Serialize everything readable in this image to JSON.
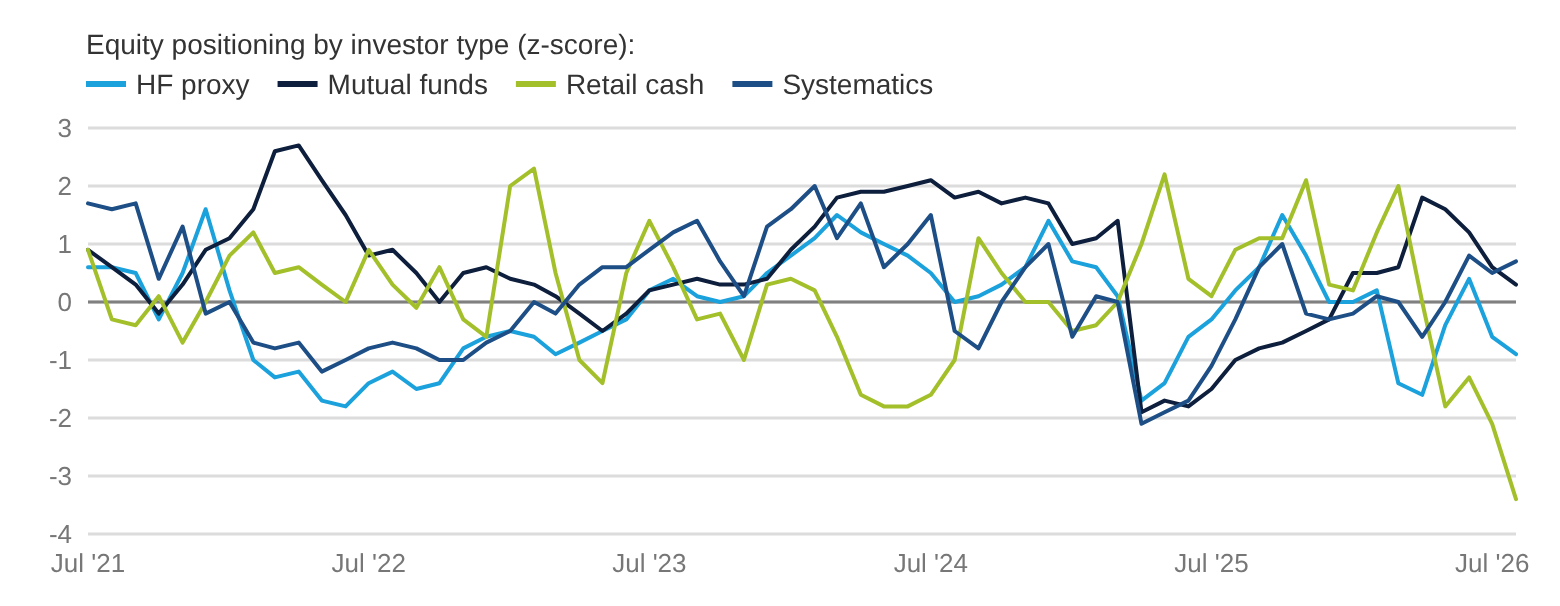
{
  "chart_data": {
    "type": "line",
    "title": "Equity positioning by investor type (z-score):",
    "x": [
      "2021-07",
      "2021-08",
      "2021-09",
      "2021-10",
      "2021-11",
      "2021-12",
      "2022-01",
      "2022-02",
      "2022-03",
      "2022-04",
      "2022-05",
      "2022-06",
      "2022-07",
      "2022-08",
      "2022-09",
      "2022-10",
      "2022-11",
      "2022-12",
      "2023-01",
      "2023-02",
      "2023-03",
      "2023-04",
      "2023-05",
      "2023-06",
      "2023-07",
      "2023-08",
      "2023-09",
      "2023-10",
      "2023-11",
      "2023-12",
      "2024-01",
      "2024-02",
      "2024-03",
      "2024-04",
      "2024-05",
      "2024-06",
      "2024-07",
      "2024-08",
      "2024-09",
      "2024-10",
      "2024-11",
      "2024-12",
      "2025-01",
      "2025-02",
      "2025-03",
      "2025-04",
      "2025-05",
      "2025-06",
      "2025-07",
      "2025-08",
      "2025-09",
      "2025-10",
      "2025-11",
      "2025-12",
      "2026-01",
      "2026-02",
      "2026-03",
      "2026-04",
      "2026-05",
      "2026-06",
      "2026-07",
      "2026-08"
    ],
    "series": [
      {
        "name": "HF proxy",
        "color": "#1ba1dc",
        "values": [
          0.6,
          0.6,
          0.5,
          -0.3,
          0.5,
          1.6,
          0.2,
          -1.0,
          -1.3,
          -1.2,
          -1.7,
          -1.8,
          -1.4,
          -1.2,
          -1.5,
          -1.4,
          -0.8,
          -0.6,
          -0.5,
          -0.6,
          -0.9,
          -0.7,
          -0.5,
          -0.3,
          0.2,
          0.4,
          0.1,
          0.0,
          0.1,
          0.5,
          0.8,
          1.1,
          1.5,
          1.2,
          1.0,
          0.8,
          0.5,
          0.0,
          0.1,
          0.3,
          0.6,
          1.4,
          0.7,
          0.6,
          0.1,
          -1.7,
          -1.4,
          -0.6,
          -0.3,
          0.2,
          0.6,
          1.5,
          0.8,
          0.0,
          0.0,
          0.2,
          -1.4,
          -1.6,
          -0.4,
          0.4,
          -0.6,
          -0.9
        ]
      },
      {
        "name": "Mutual funds",
        "color": "#0d1f3c",
        "values": [
          0.9,
          0.6,
          0.3,
          -0.2,
          0.3,
          0.9,
          1.1,
          1.6,
          2.6,
          2.7,
          2.1,
          1.5,
          0.8,
          0.9,
          0.5,
          0.0,
          0.5,
          0.6,
          0.4,
          0.3,
          0.1,
          -0.2,
          -0.5,
          -0.2,
          0.2,
          0.3,
          0.4,
          0.3,
          0.3,
          0.4,
          0.9,
          1.3,
          1.8,
          1.9,
          1.9,
          2.0,
          2.1,
          1.8,
          1.9,
          1.7,
          1.8,
          1.7,
          1.0,
          1.1,
          1.4,
          -1.9,
          -1.7,
          -1.8,
          -1.5,
          -1.0,
          -0.8,
          -0.7,
          -0.5,
          -0.3,
          0.5,
          0.5,
          0.6,
          1.8,
          1.6,
          1.2,
          0.6,
          0.3
        ]
      },
      {
        "name": "Retail cash",
        "color": "#a3c02b",
        "values": [
          0.9,
          -0.3,
          -0.4,
          0.1,
          -0.7,
          0.0,
          0.8,
          1.2,
          0.5,
          0.6,
          0.3,
          0.0,
          0.9,
          0.3,
          -0.1,
          0.6,
          -0.3,
          -0.6,
          2.0,
          2.3,
          0.5,
          -1.0,
          -1.4,
          0.5,
          1.4,
          0.6,
          -0.3,
          -0.2,
          -1.0,
          0.3,
          0.4,
          0.2,
          -0.6,
          -1.6,
          -1.8,
          -1.8,
          -1.6,
          -1.0,
          1.1,
          0.5,
          0.0,
          0.0,
          -0.5,
          -0.4,
          0.0,
          1.0,
          2.2,
          0.4,
          0.1,
          0.9,
          1.1,
          1.1,
          2.1,
          0.3,
          0.2,
          1.2,
          2.0,
          0.0,
          -1.8,
          -1.3,
          -2.1,
          -3.4
        ]
      },
      {
        "name": "Systematics",
        "color": "#1d4f86",
        "values": [
          1.7,
          1.6,
          1.7,
          0.4,
          1.3,
          -0.2,
          0.0,
          -0.7,
          -0.8,
          -0.7,
          -1.2,
          -1.0,
          -0.8,
          -0.7,
          -0.8,
          -1.0,
          -1.0,
          -0.7,
          -0.5,
          0.0,
          -0.2,
          0.3,
          0.6,
          0.6,
          0.9,
          1.2,
          1.4,
          0.7,
          0.1,
          1.3,
          1.6,
          2.0,
          1.1,
          1.7,
          0.6,
          1.0,
          1.5,
          -0.5,
          -0.8,
          0.0,
          0.6,
          1.0,
          -0.6,
          0.1,
          0.0,
          -2.1,
          -1.9,
          -1.7,
          -1.1,
          -0.3,
          0.6,
          1.0,
          -0.2,
          -0.3,
          -0.2,
          0.1,
          0.0,
          -0.6,
          0.0,
          0.8,
          0.5,
          0.7
        ]
      }
    ],
    "xlim": [
      "2021-07",
      "2026-08"
    ],
    "xticks": [
      {
        "value": "2021-07",
        "label": "Jul '21"
      },
      {
        "value": "2022-07",
        "label": "Jul '22"
      },
      {
        "value": "2023-07",
        "label": "Jul '23"
      },
      {
        "value": "2024-07",
        "label": "Jul '24"
      },
      {
        "value": "2025-07",
        "label": "Jul '25"
      },
      {
        "value": "2026-07",
        "label": "Jul '26"
      }
    ],
    "ylim": [
      -4,
      3
    ],
    "yticks": [
      -4,
      -3,
      -2,
      -1,
      0,
      1,
      2,
      3
    ],
    "ref_lines": [
      {
        "axis": "y",
        "value": 0,
        "color": "#808080"
      }
    ],
    "grid": "y",
    "legend": "top left",
    "marker": "none",
    "line_style": "solid"
  }
}
